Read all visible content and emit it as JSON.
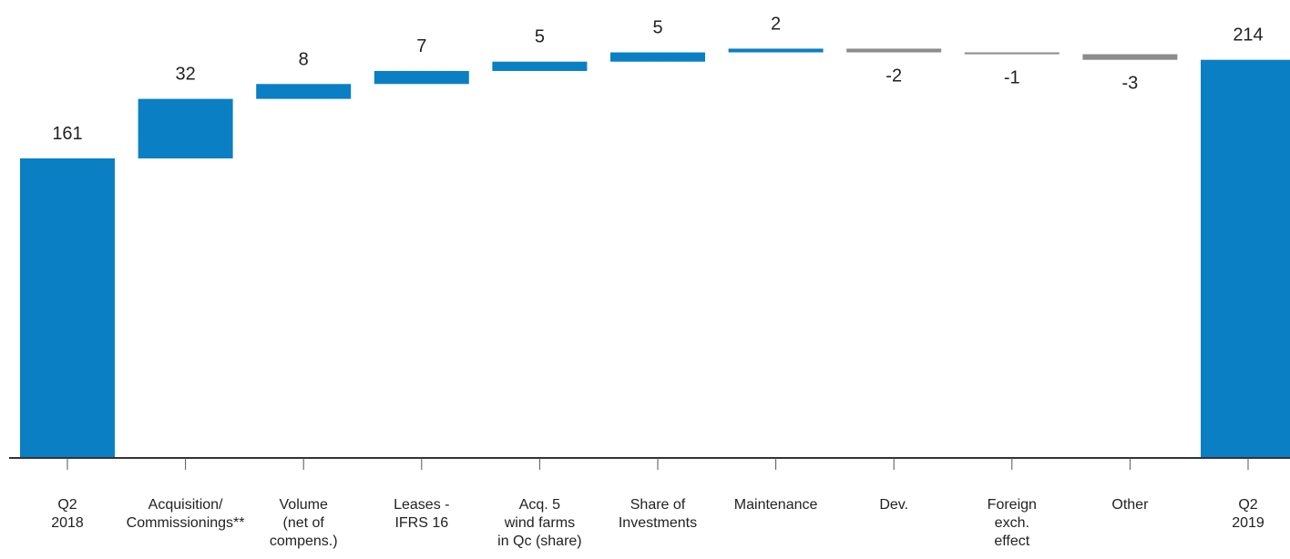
{
  "chart_data": {
    "type": "bar",
    "subtype": "waterfall",
    "title": "",
    "xlabel": "",
    "ylabel": "",
    "ylim": [
      0,
      230
    ],
    "grid": false,
    "legend": "none",
    "categories": [
      [
        "Q2",
        "2018"
      ],
      [
        "Acquisition/",
        "Commissionings**"
      ],
      [
        "Volume",
        "(net of",
        "compens.)"
      ],
      [
        "Leases -",
        "IFRS 16"
      ],
      [
        "Acq. 5",
        "wind farms",
        "in Qc (share)"
      ],
      [
        "Share of",
        "Investments"
      ],
      [
        "Maintenance"
      ],
      [
        "Dev."
      ],
      [
        "Foreign",
        "exch.",
        "effect"
      ],
      [
        "Other"
      ],
      [
        "Q2",
        "2019"
      ]
    ],
    "values": [
      161,
      32,
      8,
      7,
      5,
      5,
      2,
      -2,
      -1,
      -3,
      214
    ],
    "labels": [
      "161",
      "32",
      "8",
      "7",
      "5",
      "5",
      "2",
      "-2",
      "-1",
      "-3",
      "214"
    ],
    "kinds": [
      "total",
      "delta",
      "delta",
      "delta",
      "delta",
      "delta",
      "delta",
      "delta",
      "delta",
      "delta",
      "total"
    ],
    "colors": {
      "total": "#0a7fc4",
      "increase": "#0a7fc4",
      "decrease": "#8c8c8c",
      "axis": "#333333"
    }
  }
}
